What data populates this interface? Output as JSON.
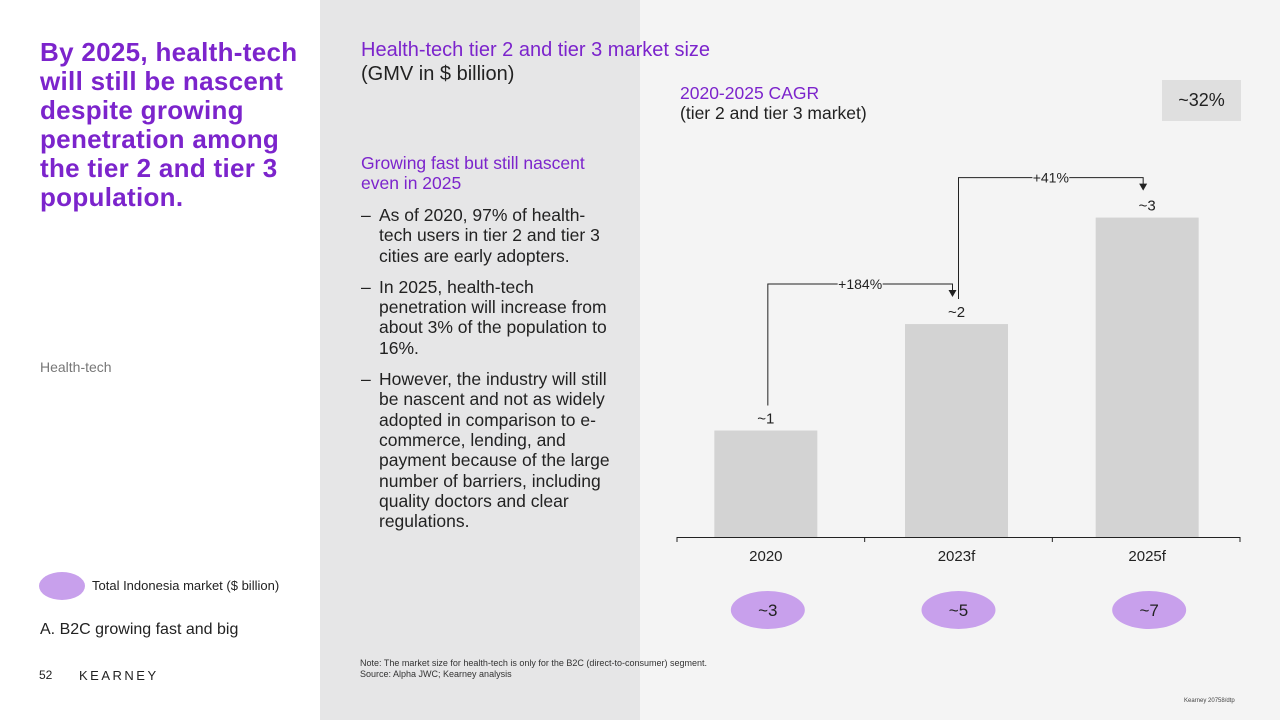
{
  "headline": "By 2025, health-tech will still be nascent despite growing penetration among the tier 2 and tier 3 population.",
  "section_label": "Health-tech",
  "legend": {
    "label": "Total Indonesia market ($ billion)",
    "color": "#c8a0ec"
  },
  "subsection": "A. B2C growing fast and big",
  "footer": {
    "page_number": "52",
    "brand": "KEARNEY",
    "reference": "Kearney 20758/dtp"
  },
  "chart_header": {
    "title": "Health-tech tier 2 and tier 3 market size",
    "unit": "(GMV in $ billion)"
  },
  "side": {
    "heading": "Growing fast but still nascent even in 2025",
    "bullets": [
      "As of 2020, 97% of health-tech users in tier 2 and tier 3 cities are early adopters.",
      "In 2025, health-tech penetration will increase from about 3% of the population to 16%.",
      "However, the industry will still be nascent and not as widely adopted in comparison to e-commerce, lending, and payment because of the large number of barriers, including quality doctors and clear regulations."
    ],
    "dash": "–"
  },
  "cagr": {
    "title": "2020-2025 CAGR",
    "subtitle": "(tier 2 and tier 3 market)",
    "value": "~32%"
  },
  "note": "Note: The market size for health-tech is only for the B2C (direct-to-consumer) segment.",
  "source": "Source: Alpha JWC; Kearney analysis",
  "colors": {
    "accent": "#7c24cc",
    "bar": "#d3d3d3",
    "oval": "#c8a0ec"
  },
  "chart_data": {
    "type": "bar",
    "categories": [
      "2020",
      "2023f",
      "2025f"
    ],
    "values": [
      1,
      2,
      3
    ],
    "data_labels": [
      "~1",
      "~2",
      "~3"
    ],
    "total_market_labels": [
      "~3",
      "~5",
      "~7"
    ],
    "growth_annotations": [
      {
        "from": "2020",
        "to": "2023f",
        "label": "+184%"
      },
      {
        "from": "2023f",
        "to": "2025f",
        "label": "+41%"
      }
    ],
    "title": "Health-tech tier 2 and tier 3 market size",
    "ylabel": "",
    "ylim": [
      0,
      3.4
    ],
    "grid": false
  }
}
